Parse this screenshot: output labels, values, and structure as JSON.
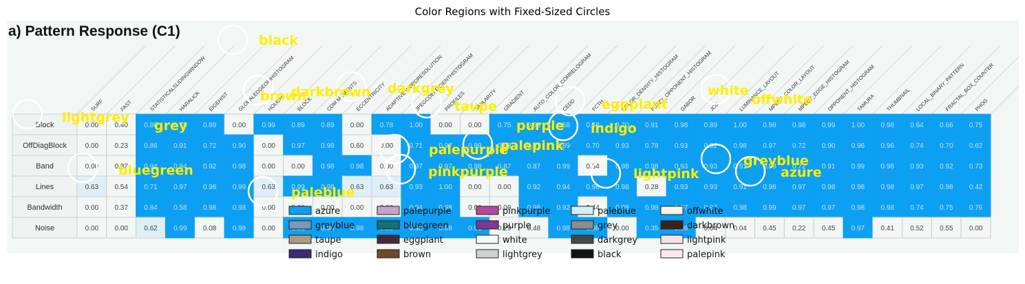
{
  "chart_title": "Color Regions with Fixed-Sized Circles",
  "chart_data": {
    "type": "heatmap",
    "title": "Color Regions with Fixed-Sized Circles",
    "panel_title": "a) Pattern Response (C1)",
    "rows": [
      "Block",
      "OffDiagBlock",
      "Band",
      "Lines",
      "Bandwidth",
      "Noise"
    ],
    "columns": [
      "SURF",
      "FAST",
      "STATISTICALSLIDINGWINDOW",
      "HARALICK",
      "EIGEHIST",
      "GLOBALEDGEORIHISTOGRAM",
      "HOUGH",
      "BLOCK",
      "COM MOMENTS",
      "ECCENTRICITY",
      "ADAPTIVE WORDRESOLUTION",
      "JPEGCOEFFICIENTHISTOGRAM",
      "PROFILES",
      "SIMILARITY",
      "GRADIENT",
      "AUTO_COLOR_CORRELOGRAM",
      "CEDD",
      "FCTH",
      "COLOR_DENSITY_HISTOGRAM",
      "FUZZY_OPPONENT_HISTOGRAM",
      "GABOR",
      "JCD",
      "LUMINANCE_LAYOUT",
      "MPEG7_COLOR_LAYOUT",
      "MPEG7_EDGE_HISTOGRAM",
      "OPPONENT_HISTOGRAM",
      "TAMURA",
      "THUMBNAIL",
      "LOCAL_BINARY_PATTERN",
      "FRACTAL_BOX_COUNTER",
      "PHOG"
    ],
    "cell_text": [
      [
        "0.00",
        "0.40",
        "0.86",
        "0.75",
        "0.89",
        "0.00",
        "0.99",
        "0.89",
        "0.89",
        "0.00",
        "0.78",
        "1.00",
        "0.00",
        "0.00",
        "0.75",
        "0.58",
        "0.58",
        "0.58",
        "0.70",
        "0.91",
        "0.98",
        "0.89",
        "1.00",
        "0.98",
        "0.98",
        "0.99",
        "1.00",
        "0.98",
        "0.64",
        "0.66",
        "0.75"
      ],
      [
        "0.00",
        "0.23",
        "0.86",
        "0.91",
        "0.72",
        "0.90",
        "0.00",
        "0.97",
        "0.98",
        "0.60",
        "0.00",
        "0.71",
        "0.97",
        "0.89",
        "0.98",
        "0.97",
        "0.89",
        "0.70",
        "0.93",
        "0.78",
        "0.93",
        "0.92",
        "0.98",
        "0.97",
        "0.72",
        "0.90",
        "0.96",
        "0.96",
        "0.74",
        "0.70",
        "0.62"
      ],
      [
        "0.00",
        "0.37",
        "0.94",
        "0.94",
        "0.92",
        "0.98",
        "0.00",
        "0.00",
        "0.98",
        "0.98",
        "0.00",
        "0.97",
        "0.97",
        "0.98",
        "0.87",
        "0.87",
        "0.99",
        "0.34",
        "0.98",
        "0.98",
        "0.93",
        "0.93",
        "0.91",
        "0.98",
        "0.72",
        "0.91",
        "0.99",
        "0.98",
        "0.93",
        "0.92",
        "0.73"
      ],
      [
        "0.63",
        "0.54",
        "0.71",
        "0.97",
        "0.98",
        "0.99",
        "0.63",
        "0.99",
        "0.98",
        "0.63",
        "0.63",
        "0.93",
        "1.00",
        "0.00",
        "0.00",
        "0.92",
        "0.94",
        "0.98",
        "0.98",
        "0.28",
        "0.93",
        "0.93",
        "0.91",
        "0.98",
        "0.97",
        "0.98",
        "0.98",
        "0.98",
        "0.97",
        "0.98",
        "0.42"
      ],
      [
        "0.00",
        "0.37",
        "0.84",
        "0.58",
        "0.98",
        "0.98",
        "0.00",
        "0.00",
        "0.00",
        "0.00",
        "0.00",
        "0.94",
        "0.98",
        "0.00",
        "0.00",
        "0.98",
        "0.92",
        "0.44",
        "0.98",
        "0.98",
        "0.97",
        "0.97",
        "0.98",
        "0.99",
        "0.97",
        "0.97",
        "0.98",
        "0.98",
        "0.74",
        "0.75",
        "0.76"
      ],
      [
        "0.00",
        "0.00",
        "0.62",
        "0.99",
        "0.08",
        "0.98",
        "0.00",
        "0.98",
        "0.98",
        "0.98",
        "0.98",
        "0.98",
        "0.98",
        "0.91",
        "0.29",
        "0.48",
        "0.98",
        "0.98",
        "0.00",
        "0.35",
        "0.98",
        "0.04",
        "0.04",
        "0.45",
        "0.22",
        "0.45",
        "0.97",
        "0.41",
        "0.52",
        "0.55",
        "0.00"
      ]
    ],
    "cell_colors": [
      [
        "#f2f6f4",
        "#f2f6f4",
        "#0d9ff2",
        "#0d9ff2",
        "#0d9ff2",
        "#f2f6f4",
        "#0d9ff2",
        "#0d9ff2",
        "#0d9ff2",
        "#f2f6f4",
        "#0d9ff2",
        "#0d9ff2",
        "#f2f6f4",
        "#f2f6f4",
        "#0d9ff2",
        "#0d9ff2",
        "#0d9ff2",
        "#0d9ff2",
        "#0d9ff2",
        "#0d9ff2",
        "#0d9ff2",
        "#0d9ff2",
        "#0d9ff2",
        "#0d9ff2",
        "#0d9ff2",
        "#0d9ff2",
        "#0d9ff2",
        "#0d9ff2",
        "#0d9ff2",
        "#0d9ff2",
        "#0d9ff2"
      ],
      [
        "#f2f6f4",
        "#f2f6f4",
        "#0d9ff2",
        "#0d9ff2",
        "#0d9ff2",
        "#0d9ff2",
        "#f2f6f4",
        "#0d9ff2",
        "#0d9ff2",
        "#f2f6f4",
        "#f2f6f4",
        "#0d9ff2",
        "#0d9ff2",
        "#0d9ff2",
        "#0d9ff2",
        "#0d9ff2",
        "#0d9ff2",
        "#0d9ff2",
        "#0d9ff2",
        "#0d9ff2",
        "#0d9ff2",
        "#0d9ff2",
        "#0d9ff2",
        "#0d9ff2",
        "#0d9ff2",
        "#0d9ff2",
        "#0d9ff2",
        "#0d9ff2",
        "#0d9ff2",
        "#0d9ff2",
        "#0d9ff2"
      ],
      [
        "#f2f6f4",
        "#f2f6f4",
        "#0d9ff2",
        "#0d9ff2",
        "#0d9ff2",
        "#0d9ff2",
        "#f2f6f4",
        "#f2f6f4",
        "#0d9ff2",
        "#0d9ff2",
        "#f2f6f4",
        "#0d9ff2",
        "#0d9ff2",
        "#0d9ff2",
        "#0d9ff2",
        "#0d9ff2",
        "#0d9ff2",
        "#f2f6f4",
        "#0d9ff2",
        "#0d9ff2",
        "#0d9ff2",
        "#0d9ff2",
        "#0d9ff2",
        "#0d9ff2",
        "#0d9ff2",
        "#0d9ff2",
        "#0d9ff2",
        "#0d9ff2",
        "#0d9ff2",
        "#0d9ff2",
        "#0d9ff2"
      ],
      [
        "#dfeff8",
        "#f2f6f4",
        "#0d9ff2",
        "#0d9ff2",
        "#0d9ff2",
        "#0d9ff2",
        "#dfeff8",
        "#0d9ff2",
        "#0d9ff2",
        "#dfeff8",
        "#dfeff8",
        "#0d9ff2",
        "#0d9ff2",
        "#f2f6f4",
        "#f2f6f4",
        "#0d9ff2",
        "#0d9ff2",
        "#0d9ff2",
        "#0d9ff2",
        "#f2f6f4",
        "#0d9ff2",
        "#0d9ff2",
        "#0d9ff2",
        "#0d9ff2",
        "#0d9ff2",
        "#0d9ff2",
        "#0d9ff2",
        "#0d9ff2",
        "#0d9ff2",
        "#0d9ff2",
        "#0d9ff2"
      ],
      [
        "#f2f6f4",
        "#f2f6f4",
        "#0d9ff2",
        "#0d9ff2",
        "#0d9ff2",
        "#0d9ff2",
        "#f2f6f4",
        "#f2f6f4",
        "#f2f6f4",
        "#f2f6f4",
        "#f2f6f4",
        "#0d9ff2",
        "#0d9ff2",
        "#f2f6f4",
        "#f2f6f4",
        "#0d9ff2",
        "#0d9ff2",
        "#f2f6f4",
        "#0d9ff2",
        "#0d9ff2",
        "#0d9ff2",
        "#0d9ff2",
        "#0d9ff2",
        "#0d9ff2",
        "#0d9ff2",
        "#0d9ff2",
        "#0d9ff2",
        "#0d9ff2",
        "#0d9ff2",
        "#0d9ff2",
        "#0d9ff2"
      ],
      [
        "#f2f6f4",
        "#f2f6f4",
        "#dfeff8",
        "#0d9ff2",
        "#f2f6f4",
        "#0d9ff2",
        "#f2f6f4",
        "#0d9ff2",
        "#0d9ff2",
        "#0d9ff2",
        "#0d9ff2",
        "#0d9ff2",
        "#0d9ff2",
        "#0d9ff2",
        "#f2f6f4",
        "#f2f6f4",
        "#0d9ff2",
        "#0d9ff2",
        "#f2f6f4",
        "#0d9ff2",
        "#0d9ff2",
        "#f2f6f4",
        "#f2f6f4",
        "#f2f6f4",
        "#f2f6f4",
        "#f2f6f4",
        "#0d9ff2",
        "#f2f6f4",
        "#f2f6f4",
        "#f2f6f4",
        "#f2f6f4"
      ]
    ],
    "region_labels": [
      "black",
      "lightgrey",
      "grey",
      "brown",
      "darkbrown",
      "darkgrey",
      "taupe",
      "purple",
      "indigo",
      "eggplant",
      "white",
      "offwhite",
      "palepurple",
      "palepink",
      "bluegreen",
      "pinkpurple",
      "lightpink",
      "greyblue",
      "azure",
      "paleblue"
    ],
    "legend": [
      {
        "name": "azure",
        "color": "#0d9ff2"
      },
      {
        "name": "greyblue",
        "color": "#7a99b3"
      },
      {
        "name": "taupe",
        "color": "#ad9982"
      },
      {
        "name": "indigo",
        "color": "#3d2b70"
      },
      {
        "name": "palepurple",
        "color": "#c7a3c7"
      },
      {
        "name": "bluegreen",
        "color": "#177070"
      },
      {
        "name": "eggplant",
        "color": "#47293d"
      },
      {
        "name": "brown",
        "color": "#6b4a2b"
      },
      {
        "name": "pinkpurple",
        "color": "#b04a9c"
      },
      {
        "name": "purple",
        "color": "#80388f"
      },
      {
        "name": "white",
        "color": "#f7f7f7"
      },
      {
        "name": "lightgrey",
        "color": "#d1d1d1"
      },
      {
        "name": "paleblue",
        "color": "#d6edf5"
      },
      {
        "name": "grey",
        "color": "#8c8c8c"
      },
      {
        "name": "darkgrey",
        "color": "#474747"
      },
      {
        "name": "black",
        "color": "#121212"
      },
      {
        "name": "offwhite",
        "color": "#f7f5e6"
      },
      {
        "name": "darkbrown",
        "color": "#3b2117"
      },
      {
        "name": "lightpink",
        "color": "#fae0e6"
      },
      {
        "name": "palepink",
        "color": "#fce8ee"
      }
    ],
    "label_color": "#ffee00",
    "legend_placement": "bottom-center",
    "grid": true
  }
}
